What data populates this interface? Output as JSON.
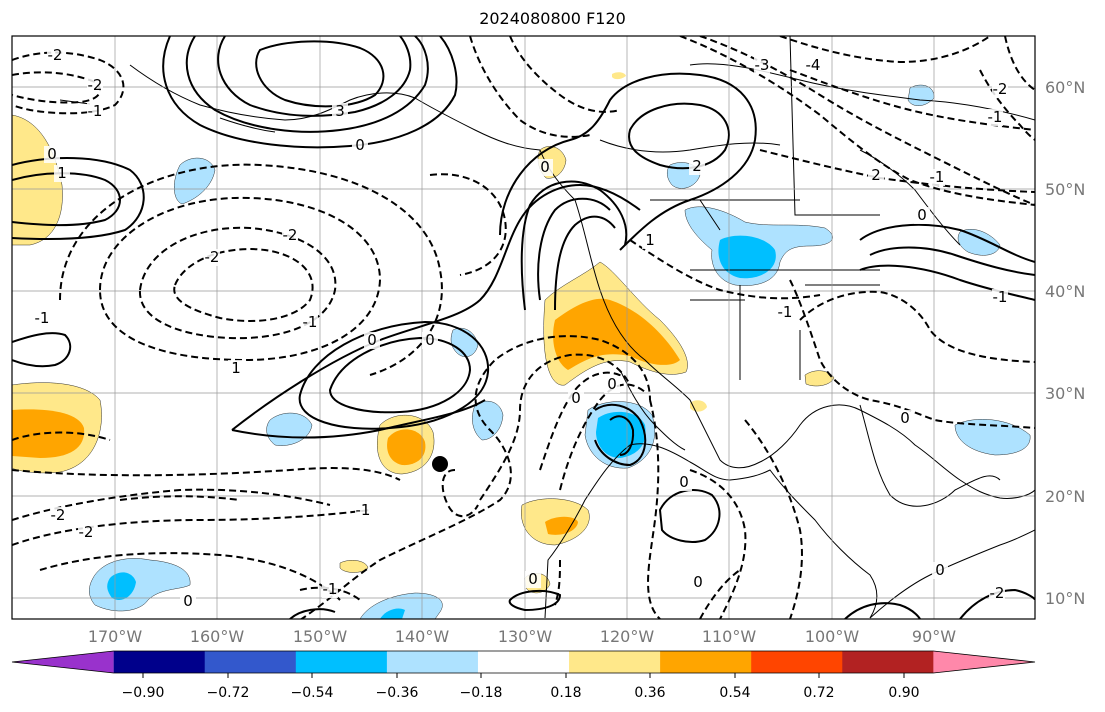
{
  "title": "2024080800 F120",
  "map": {
    "lon_labels": [
      "170°W",
      "160°W",
      "150°W",
      "140°W",
      "130°W",
      "120°W",
      "110°W",
      "100°W",
      "90°W"
    ],
    "lat_labels": [
      "60°N",
      "50°N",
      "40°N",
      "30°N",
      "20°N",
      "10°N"
    ],
    "contour_labels": [
      "-2",
      "-2",
      "-1",
      "0",
      "1",
      "3",
      "0",
      "-2",
      "-2",
      "-1",
      "0",
      "0",
      "1",
      "2",
      "1",
      "0",
      "-3",
      "-4",
      "-2",
      "-1",
      "2",
      "-1",
      "0",
      "-1",
      "-1",
      "0",
      "-2",
      "-2",
      "-1",
      "0",
      "0",
      "0",
      "0",
      "-1",
      "0",
      "-2",
      "-1",
      "0",
      "0"
    ]
  },
  "colorbar": {
    "ticks": [
      "−0.90",
      "−0.72",
      "−0.54",
      "−0.36",
      "−0.18",
      "0.18",
      "0.36",
      "0.54",
      "0.72",
      "0.90"
    ],
    "colors": [
      "#9932cc",
      "#00008b",
      "#3358cc",
      "#00bfff",
      "#aee2ff",
      "#ffffff",
      "#ffe88a",
      "#ffa500",
      "#ff4500",
      "#b22222",
      "#ff88aa"
    ]
  }
}
